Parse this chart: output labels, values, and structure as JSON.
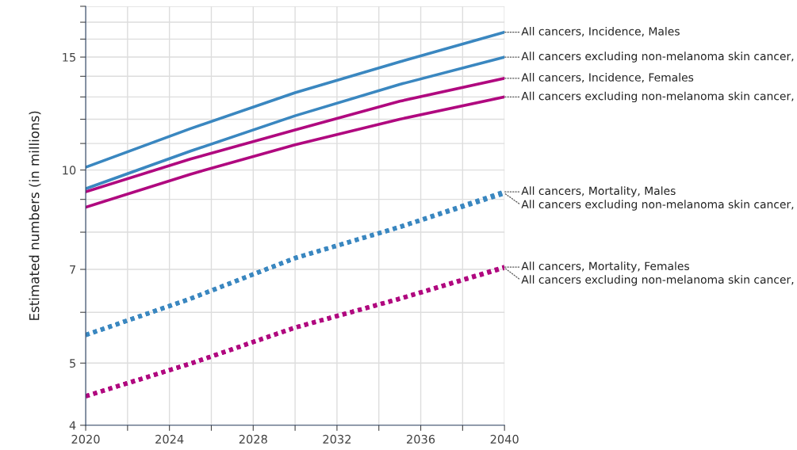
{
  "chart_data": {
    "type": "line",
    "ylabel": "Estimated numbers (in millions)",
    "log": "y",
    "grid": true,
    "legend": false,
    "x": [
      2020,
      2025,
      2030,
      2035,
      2040
    ],
    "xlim": [
      2020,
      2040
    ],
    "xticks": [
      2020,
      {
        "value": 2022,
        "label": null
      },
      2024,
      {
        "value": 2026,
        "label": null
      },
      2028,
      {
        "value": 2030,
        "label": null
      },
      2032,
      {
        "value": 2034,
        "label": null
      },
      2036,
      {
        "value": 2038,
        "label": null
      },
      2040
    ],
    "ylim": [
      4,
      18
    ],
    "yticks": [
      4,
      5,
      {
        "value": 6,
        "label": null
      },
      7,
      {
        "value": 8,
        "label": null
      },
      {
        "value": 9,
        "label": null
      },
      10,
      {
        "value": 11,
        "label": null
      },
      {
        "value": 12,
        "label": null
      },
      {
        "value": 13,
        "label": null
      },
      {
        "value": 14,
        "label": null
      },
      15,
      {
        "value": 16,
        "label": null
      },
      {
        "value": 17,
        "label": null
      },
      {
        "value": 18,
        "label": null
      }
    ],
    "series": [
      {
        "name": "All cancers, Incidence, Males",
        "color": "#3a87c0",
        "line_style": "solid",
        "values": [
          10.1,
          11.6,
          13.2,
          14.75,
          16.4
        ]
      },
      {
        "name": "All cancers excluding non-melanoma skin cancer,",
        "color": "#3a87c0",
        "line_style": "solid",
        "values": [
          9.35,
          10.7,
          12.15,
          13.6,
          15.0
        ]
      },
      {
        "name": "All cancers, Incidence, Females",
        "color": "#b0087f",
        "line_style": "solid",
        "values": [
          9.25,
          10.4,
          11.55,
          12.8,
          13.9
        ]
      },
      {
        "name": "All cancers excluding non-melanoma skin cancer,",
        "color": "#b0087f",
        "line_style": "solid",
        "values": [
          8.75,
          9.85,
          10.95,
          12.0,
          13.0
        ]
      },
      {
        "name": "All cancers, Mortality, Males",
        "color": "#3a87c0",
        "line_style": "dotted",
        "values": [
          5.53,
          6.3,
          7.29,
          8.15,
          9.25
        ]
      },
      {
        "name": "All cancers excluding non-melanoma skin cancer,",
        "color": "#3a87c0",
        "line_style": "dotted",
        "values": [
          5.53,
          6.3,
          7.29,
          8.15,
          9.2
        ]
      },
      {
        "name": "All cancers, Mortality, Females",
        "color": "#b0087f",
        "line_style": "dotted",
        "values": [
          4.44,
          4.99,
          5.68,
          6.3,
          7.06
        ]
      },
      {
        "name": "All cancers excluding non-melanoma skin cancer,",
        "color": "#b0087f",
        "line_style": "dotted",
        "values": [
          4.44,
          4.99,
          5.68,
          6.3,
          7.04
        ]
      }
    ]
  }
}
